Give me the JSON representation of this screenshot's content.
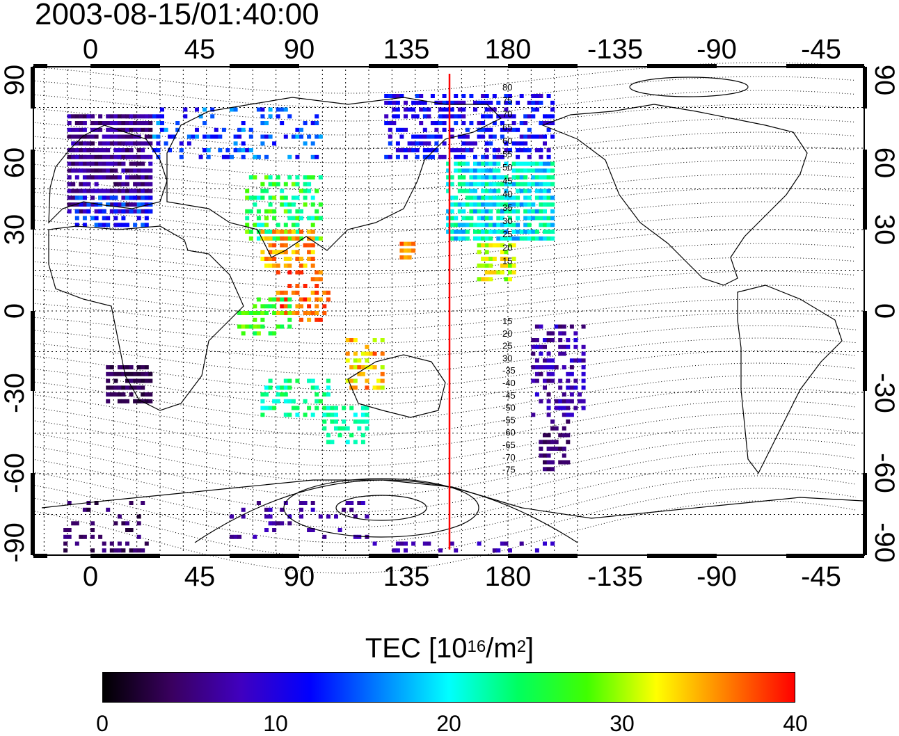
{
  "timestamp": "2003-08-15/01:40:00",
  "map": {
    "projection": "equirectangular (cylindrical)",
    "longitude_tick_labels": [
      "0",
      "45",
      "90",
      "135",
      "180",
      "-135",
      "-90",
      "-45"
    ],
    "latitude_tick_labels": [
      "90",
      "60",
      "30",
      "0",
      "-30",
      "-60",
      "-90"
    ],
    "grid": "dotted, every 15 degrees",
    "terminator_line": {
      "color": "#ff0000",
      "longitude": 155
    },
    "contour_labels_north": [
      "80",
      "75",
      "70",
      "65",
      "60",
      "55",
      "50",
      "45",
      "40",
      "35",
      "30",
      "25",
      "20",
      "15"
    ],
    "contour_labels_south": [
      "15",
      "20",
      "25",
      "30",
      "-35",
      "-40",
      "-45",
      "-50",
      "-55",
      "-60",
      "-65",
      "-70",
      "-75"
    ]
  },
  "colorbar": {
    "title_prefix": "TEC  [10",
    "title_exp": "16",
    "title_mid": "/m",
    "title_exp2": "2",
    "title_suffix": "]",
    "tick_labels": [
      "0",
      "10",
      "20",
      "30",
      "40"
    ],
    "colors": [
      "#000000",
      "#3a0060",
      "#4000c0",
      "#0000ff",
      "#0080ff",
      "#00ffff",
      "#00ff60",
      "#40ff00",
      "#ffff00",
      "#ff8000",
      "#ff0000"
    ]
  }
}
